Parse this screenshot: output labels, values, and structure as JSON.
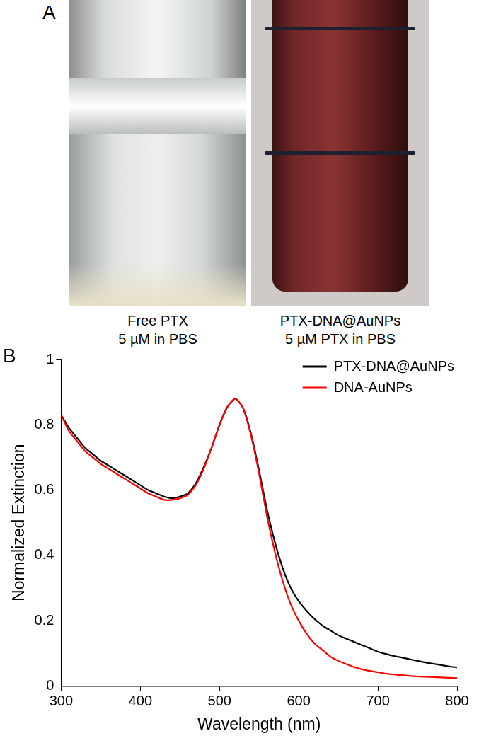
{
  "figure": {
    "panel_a": {
      "label": "A",
      "photos": [
        {
          "caption_lines": [
            "Free PTX",
            "5 µM in PBS"
          ]
        },
        {
          "caption_lines": [
            "PTX-DNA@AuNPs",
            "5 µM PTX in PBS"
          ]
        }
      ]
    },
    "panel_b": {
      "label": "B"
    }
  },
  "chart_data": {
    "type": "line",
    "x_label": "Wavelength (nm)",
    "y_label": "Normalized Extinction",
    "x": [
      300,
      310,
      320,
      330,
      340,
      350,
      360,
      370,
      380,
      390,
      400,
      410,
      420,
      430,
      440,
      450,
      460,
      470,
      480,
      490,
      500,
      510,
      520,
      530,
      540,
      550,
      560,
      570,
      580,
      590,
      600,
      610,
      620,
      630,
      640,
      650,
      660,
      670,
      680,
      690,
      700,
      710,
      720,
      730,
      740,
      750,
      760,
      770,
      780,
      790,
      800
    ],
    "series": [
      {
        "name": "PTX-DNA@AuNPs",
        "color": "#000000",
        "values": [
          0.83,
          0.79,
          0.76,
          0.73,
          0.71,
          0.69,
          0.675,
          0.66,
          0.645,
          0.63,
          0.615,
          0.6,
          0.59,
          0.58,
          0.575,
          0.58,
          0.59,
          0.62,
          0.67,
          0.73,
          0.8,
          0.855,
          0.88,
          0.85,
          0.77,
          0.66,
          0.54,
          0.44,
          0.36,
          0.3,
          0.26,
          0.23,
          0.205,
          0.185,
          0.17,
          0.155,
          0.145,
          0.135,
          0.125,
          0.115,
          0.105,
          0.098,
          0.092,
          0.087,
          0.082,
          0.077,
          0.072,
          0.068,
          0.064,
          0.06,
          0.057
        ]
      },
      {
        "name": "DNA-AuNPs",
        "color": "#ff0000",
        "values": [
          0.83,
          0.78,
          0.75,
          0.72,
          0.7,
          0.68,
          0.665,
          0.65,
          0.635,
          0.62,
          0.605,
          0.59,
          0.58,
          0.57,
          0.57,
          0.575,
          0.585,
          0.615,
          0.665,
          0.73,
          0.8,
          0.855,
          0.88,
          0.85,
          0.765,
          0.65,
          0.52,
          0.41,
          0.32,
          0.25,
          0.2,
          0.16,
          0.13,
          0.11,
          0.09,
          0.077,
          0.067,
          0.058,
          0.051,
          0.046,
          0.042,
          0.038,
          0.035,
          0.033,
          0.031,
          0.029,
          0.028,
          0.027,
          0.026,
          0.025,
          0.024
        ]
      }
    ],
    "xlim": [
      300,
      800
    ],
    "xticks": [
      300,
      400,
      500,
      600,
      700,
      800
    ],
    "ylim": [
      0,
      1
    ],
    "yticks": [
      0,
      0.2,
      0.4,
      0.6,
      0.8,
      1
    ],
    "grid": false,
    "legend": "upper right"
  }
}
